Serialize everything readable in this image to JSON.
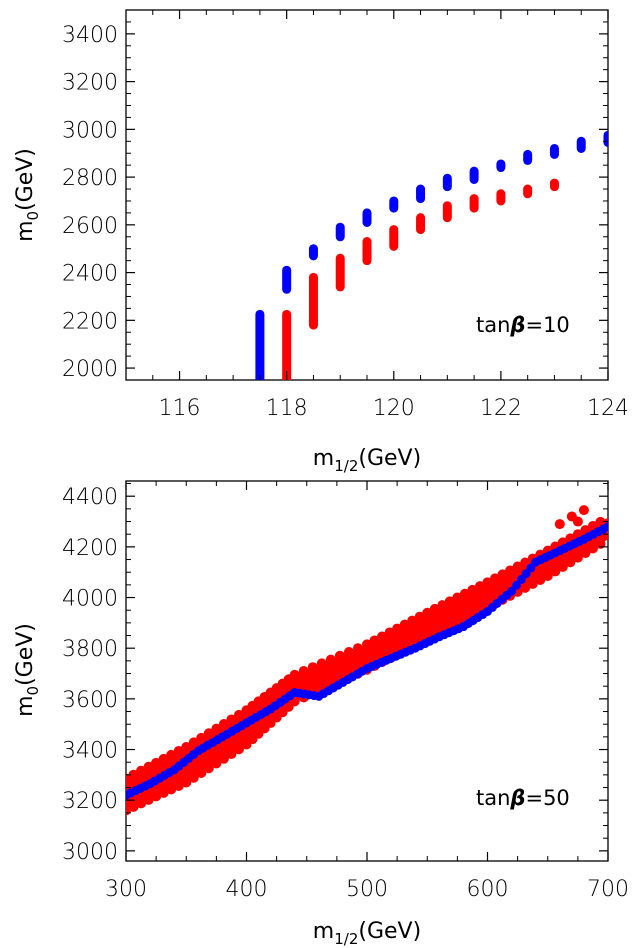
{
  "chart_data": [
    {
      "type": "scatter",
      "title": "",
      "xlabel": "m1/2(GeV)",
      "xlabel_main": "m",
      "xlabel_sub": "1/2",
      "xlabel_unit": "(GeV)",
      "ylabel": "m0(GeV)",
      "ylabel_main": "m",
      "ylabel_sub": "0",
      "ylabel_unit": "(GeV)",
      "annotation": "tanβ=10",
      "annotation_prefix": "tan",
      "annotation_beta": "β",
      "annotation_suffix": "=10",
      "xlim": [
        115,
        124
      ],
      "ylim": [
        1950,
        3500
      ],
      "xticks": [
        116,
        118,
        120,
        122,
        124
      ],
      "yticks": [
        2000,
        2200,
        2400,
        2600,
        2800,
        3000,
        3200,
        3400
      ],
      "colors": {
        "blue": "#0000ff",
        "red": "#ff0000"
      },
      "series": [
        {
          "color": "blue",
          "segments": [
            {
              "x": 117.5,
              "y0": 1950,
              "y1": 2225
            },
            {
              "x": 118.0,
              "y0": 2330,
              "y1": 2410
            },
            {
              "x": 118.5,
              "y0": 2470,
              "y1": 2500
            },
            {
              "x": 119.0,
              "y0": 2550,
              "y1": 2590
            },
            {
              "x": 119.5,
              "y0": 2610,
              "y1": 2650
            },
            {
              "x": 120.0,
              "y0": 2670,
              "y1": 2700
            },
            {
              "x": 120.5,
              "y0": 2710,
              "y1": 2750
            },
            {
              "x": 121.0,
              "y0": 2760,
              "y1": 2795
            },
            {
              "x": 121.5,
              "y0": 2790,
              "y1": 2825
            },
            {
              "x": 122.0,
              "y0": 2840,
              "y1": 2855
            },
            {
              "x": 122.5,
              "y0": 2870,
              "y1": 2895
            },
            {
              "x": 123.0,
              "y0": 2895,
              "y1": 2920
            },
            {
              "x": 123.5,
              "y0": 2920,
              "y1": 2950
            },
            {
              "x": 124.0,
              "y0": 2945,
              "y1": 2975
            }
          ]
        },
        {
          "color": "red",
          "segments": [
            {
              "x": 118.0,
              "y0": 1950,
              "y1": 2225
            },
            {
              "x": 118.5,
              "y0": 2180,
              "y1": 2380
            },
            {
              "x": 119.0,
              "y0": 2340,
              "y1": 2460
            },
            {
              "x": 119.5,
              "y0": 2450,
              "y1": 2530
            },
            {
              "x": 120.0,
              "y0": 2510,
              "y1": 2580
            },
            {
              "x": 120.5,
              "y0": 2580,
              "y1": 2630
            },
            {
              "x": 121.0,
              "y0": 2630,
              "y1": 2680
            },
            {
              "x": 121.5,
              "y0": 2670,
              "y1": 2710
            },
            {
              "x": 122.0,
              "y0": 2700,
              "y1": 2730
            },
            {
              "x": 122.5,
              "y0": 2730,
              "y1": 2750
            },
            {
              "x": 123.0,
              "y0": 2760,
              "y1": 2775
            }
          ]
        }
      ]
    },
    {
      "type": "scatter",
      "title": "",
      "xlabel": "m1/2(GeV)",
      "xlabel_main": "m",
      "xlabel_sub": "1/2",
      "xlabel_unit": "(GeV)",
      "ylabel": "m0(GeV)",
      "ylabel_main": "m",
      "ylabel_sub": "0",
      "ylabel_unit": "(GeV)",
      "annotation": "tanβ=50",
      "annotation_prefix": "tan",
      "annotation_beta": "β",
      "annotation_suffix": "=50",
      "xlim": [
        300,
        700
      ],
      "ylim": [
        2960,
        4460
      ],
      "xticks": [
        300,
        400,
        500,
        600,
        700
      ],
      "yticks": [
        3000,
        3200,
        3400,
        3600,
        3800,
        4000,
        4200,
        4400
      ],
      "colors": {
        "blue": "#0000ff",
        "red": "#ff0000"
      },
      "red_band": {
        "upper": [
          [
            300,
            3285
          ],
          [
            350,
            3410
          ],
          [
            400,
            3555
          ],
          [
            440,
            3695
          ],
          [
            500,
            3815
          ],
          [
            550,
            3940
          ],
          [
            600,
            4060
          ],
          [
            650,
            4185
          ],
          [
            700,
            4315
          ]
        ],
        "lower": [
          [
            300,
            3160
          ],
          [
            350,
            3270
          ],
          [
            400,
            3420
          ],
          [
            440,
            3590
          ],
          [
            500,
            3715
          ],
          [
            550,
            3835
          ],
          [
            600,
            3960
          ],
          [
            650,
            4085
          ],
          [
            700,
            4230
          ]
        ]
      },
      "red_outliers": [
        [
          660,
          4290
        ],
        [
          670,
          4320
        ],
        [
          680,
          4345
        ],
        [
          675,
          4300
        ]
      ],
      "blue_curve": [
        [
          300,
          3220
        ],
        [
          320,
          3265
        ],
        [
          340,
          3320
        ],
        [
          360,
          3395
        ],
        [
          380,
          3450
        ],
        [
          400,
          3505
        ],
        [
          420,
          3560
        ],
        [
          440,
          3625
        ],
        [
          460,
          3610
        ],
        [
          480,
          3665
        ],
        [
          500,
          3720
        ],
        [
          520,
          3760
        ],
        [
          540,
          3800
        ],
        [
          560,
          3845
        ],
        [
          580,
          3885
        ],
        [
          600,
          3945
        ],
        [
          620,
          4025
        ],
        [
          640,
          4140
        ],
        [
          660,
          4185
        ],
        [
          680,
          4230
        ],
        [
          700,
          4280
        ]
      ]
    }
  ]
}
